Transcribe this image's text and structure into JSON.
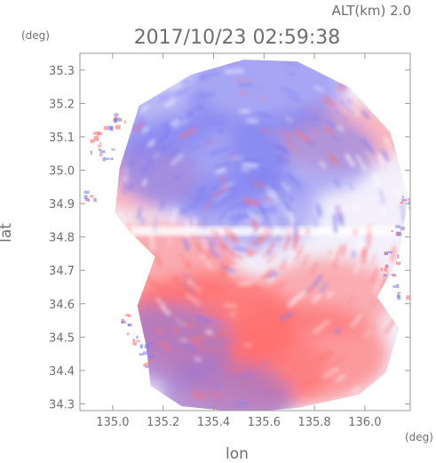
{
  "header": {
    "altitude_label": "ALT(km) 2.0",
    "timestamp": "2017/10/23 02:59:38"
  },
  "chart_data": {
    "type": "heatmap",
    "title": "2017/10/23 02:59:38",
    "subtitle": "ALT(km) 2.0",
    "xlabel": "lon",
    "ylabel": "lat",
    "x_unit": "(deg)",
    "y_unit": "(deg)",
    "xlim": [
      134.87,
      136.18
    ],
    "ylim": [
      34.28,
      35.35
    ],
    "x_ticks": [
      135.0,
      135.2,
      135.4,
      135.6,
      135.8,
      136.0
    ],
    "x_tick_labels": [
      "135.0",
      "135.2",
      "135.4",
      "135.6",
      "135.8",
      "136.0"
    ],
    "y_ticks": [
      34.3,
      34.4,
      34.5,
      34.6,
      34.7,
      34.8,
      34.9,
      35.0,
      35.1,
      35.2,
      35.3
    ],
    "y_tick_labels": [
      "34.3",
      "34.4",
      "34.5",
      "34.6",
      "34.7",
      "34.8",
      "34.9",
      "35.0",
      "35.1",
      "35.2",
      "35.3"
    ],
    "radar_center": {
      "lon": 135.52,
      "lat": 34.82
    },
    "colors": {
      "approaching": "#7c7cf0",
      "receding": "#ff7070",
      "neutral": "#ffffff",
      "frame": "#9a9a9a"
    },
    "echo_regions": [
      {
        "sign": "receding",
        "intensity": 0.55,
        "lon": 135.4,
        "lat": 34.55
      },
      {
        "sign": "receding",
        "intensity": 0.7,
        "lon": 135.35,
        "lat": 34.52
      },
      {
        "sign": "receding",
        "intensity": 0.6,
        "lon": 135.75,
        "lat": 34.45
      },
      {
        "sign": "receding",
        "intensity": 0.45,
        "lon": 135.55,
        "lat": 34.4
      },
      {
        "sign": "receding",
        "intensity": 0.35,
        "lon": 135.2,
        "lat": 34.72
      },
      {
        "sign": "receding",
        "intensity": 0.3,
        "lon": 135.85,
        "lat": 34.62
      },
      {
        "sign": "receding",
        "intensity": 0.25,
        "lon": 135.45,
        "lat": 34.33
      },
      {
        "sign": "receding",
        "intensity": 0.2,
        "lon": 135.9,
        "lat": 35.1
      },
      {
        "sign": "receding",
        "intensity": 0.2,
        "lon": 135.1,
        "lat": 34.98
      },
      {
        "sign": "approaching",
        "intensity": 0.6,
        "lon": 135.35,
        "lat": 35.02
      },
      {
        "sign": "approaching",
        "intensity": 0.5,
        "lon": 135.6,
        "lat": 35.25
      },
      {
        "sign": "approaching",
        "intensity": 0.4,
        "lon": 135.75,
        "lat": 35.05
      },
      {
        "sign": "approaching",
        "intensity": 0.35,
        "lon": 135.2,
        "lat": 34.48
      },
      {
        "sign": "approaching",
        "intensity": 0.3,
        "lon": 135.55,
        "lat": 34.88
      },
      {
        "sign": "approaching",
        "intensity": 0.25,
        "lon": 135.15,
        "lat": 35.15
      },
      {
        "sign": "approaching",
        "intensity": 0.3,
        "lon": 135.45,
        "lat": 34.31
      }
    ]
  }
}
